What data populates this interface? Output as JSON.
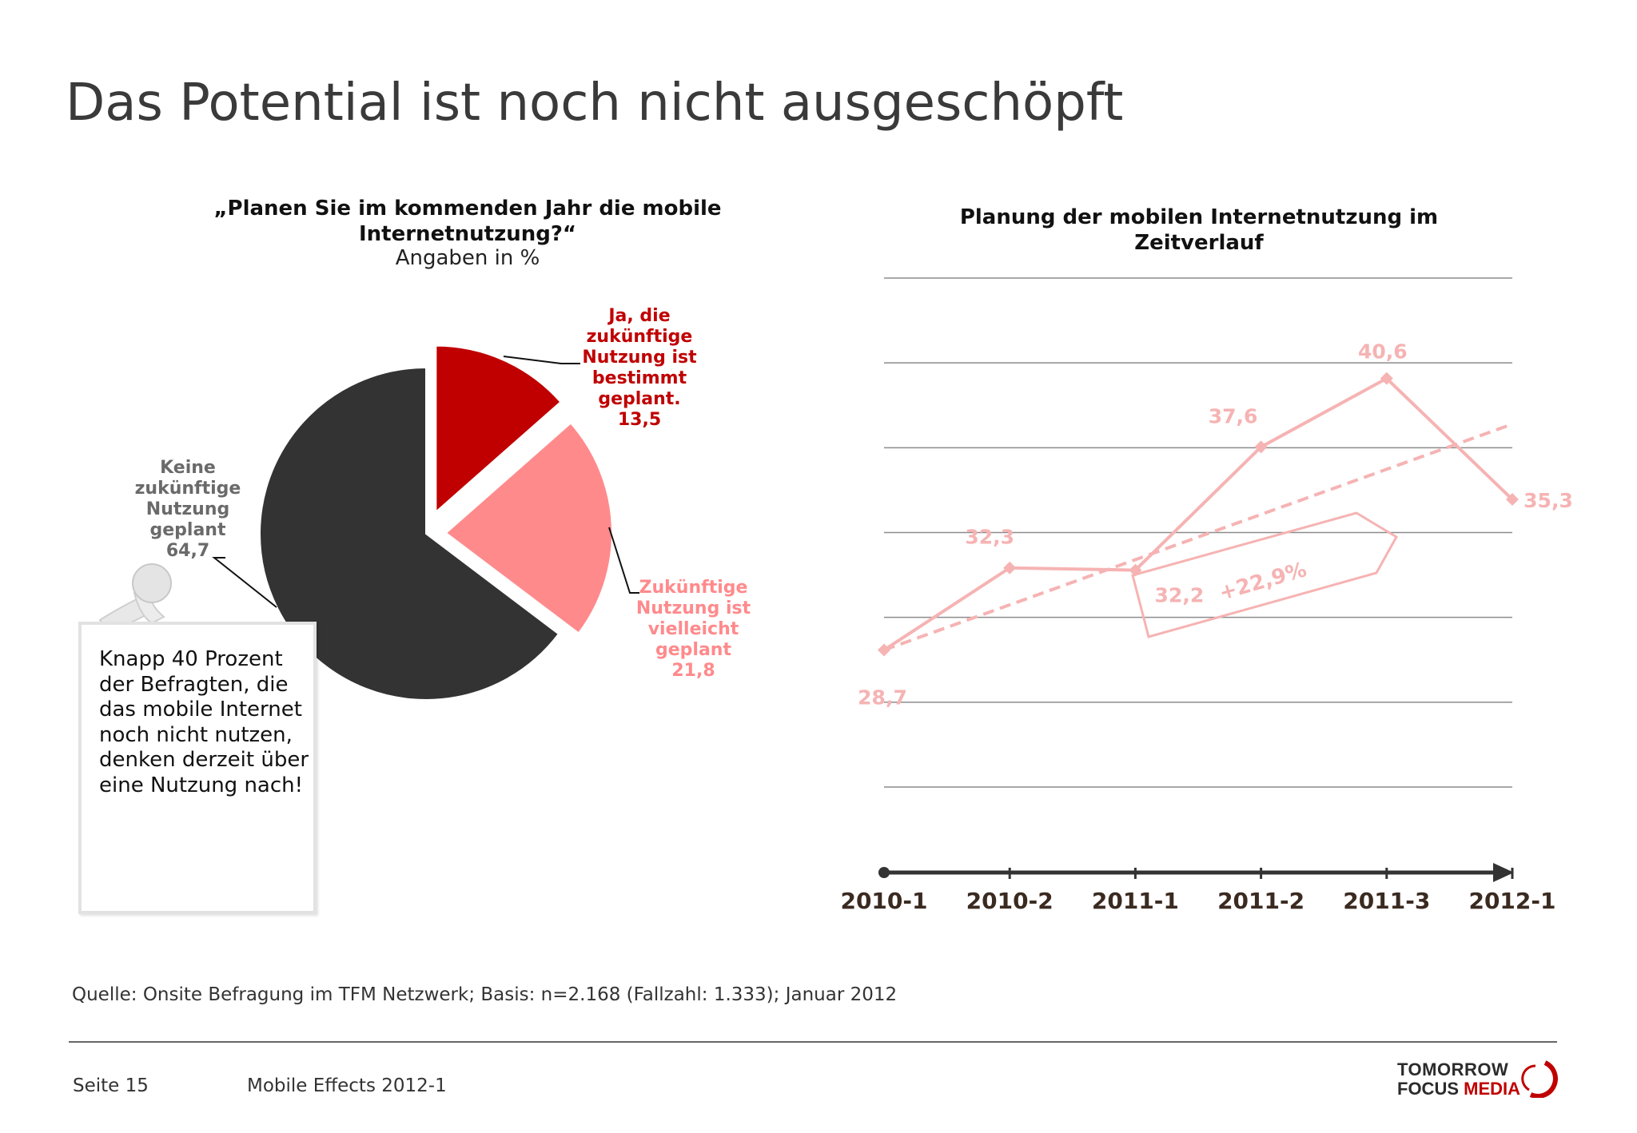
{
  "title": "Das Potential ist noch nicht ausgeschöpft",
  "pie_chart": {
    "title": "„Planen Sie im kommenden Jahr die mobile Internetnutzung?“",
    "subtitle": "Angaben in %",
    "labels": {
      "ja": [
        "Ja, die",
        "zukünftige",
        "Nutzung ist",
        "bestimmt",
        "geplant.",
        "13,5"
      ],
      "vielleicht": [
        "Zukünftige",
        "Nutzung ist",
        "vielleicht",
        "geplant",
        "21,8"
      ],
      "keine": [
        "Keine",
        "zukünftige",
        "Nutzung",
        "geplant",
        "64,7"
      ]
    }
  },
  "line_chart": {
    "title": "Planung der mobilen Internetnutzung im Zeitverlauf",
    "growth_label": "+22,9%"
  },
  "chart_data": [
    {
      "type": "pie",
      "categories": [
        "Ja, die zukünftige Nutzung ist bestimmt geplant.",
        "Zukünftige Nutzung ist vielleicht geplant",
        "Keine zukünftige Nutzung geplant"
      ],
      "values": [
        13.5,
        21.8,
        64.7
      ],
      "colors": [
        "#c00000",
        "#ff8a8c",
        "#333333"
      ],
      "title": "„Planen Sie im kommenden Jahr die mobile Internetnutzung?“",
      "subtitle": "Angaben in %"
    },
    {
      "type": "line",
      "title": "Planung der mobilen Internetnutzung im Zeitverlauf",
      "categories": [
        "2010-1",
        "2010-2",
        "2011-1",
        "2011-2",
        "2011-3",
        "2012-1"
      ],
      "series": [
        {
          "values": [
            28.7,
            32.3,
            32.2,
            37.6,
            40.6,
            35.3
          ],
          "color": "#f6b3b3"
        }
      ],
      "value_labels": [
        "28,7",
        "32,3",
        "32,2",
        "37,6",
        "40,6",
        "35,3"
      ],
      "trendline": {
        "style": "dashed",
        "from": 28.7,
        "to": 38.6
      },
      "annotation": "+22,9%",
      "ylim": [
        20,
        45
      ],
      "grid": true
    }
  ],
  "note": "Knapp 40 Prozent der Befragten, die das mobile Internet noch nicht nutzen, denken derzeit über eine Nutzung nach!",
  "footer": {
    "source": "Quelle: Onsite Befragung im TFM Netzwerk; Basis: n=2.168 (Fallzahl: 1.333); Januar 2012",
    "page": "Seite 15",
    "report": "Mobile Effects 2012-1",
    "logo_line1": "TOMORROW",
    "logo_line2a": "FOCUS",
    "logo_line2b": "MEDIA"
  }
}
